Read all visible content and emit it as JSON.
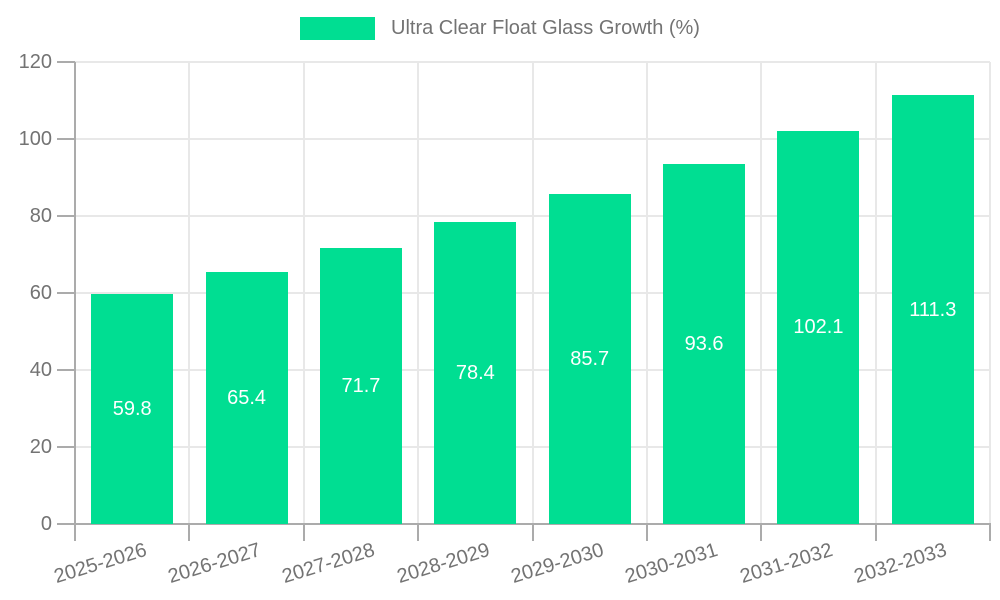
{
  "legend": {
    "label": "Ultra Clear Float Glass Growth (%)"
  },
  "chart_data": {
    "type": "bar",
    "title": "Ultra Clear Float Glass Growth (%)",
    "categories": [
      "2025-2026",
      "2026-2027",
      "2027-2028",
      "2028-2029",
      "2029-2030",
      "2030-2031",
      "2031-2032",
      "2032-2033"
    ],
    "values": [
      59.8,
      65.4,
      71.7,
      78.4,
      85.7,
      93.6,
      102.1,
      111.3
    ],
    "value_labels": [
      "59.8",
      "65.4",
      "71.7",
      "78.4",
      "85.7",
      "93.6",
      "102.1",
      "111.3"
    ],
    "xlabel": "",
    "ylabel": "",
    "ylim": [
      0,
      120
    ],
    "yticks": [
      0,
      20,
      40,
      60,
      80,
      100,
      120
    ],
    "grid": true,
    "legend_position": "top"
  },
  "colors": {
    "bar": "#00de92",
    "grid": "#e8e8e8",
    "axis": "#ababab",
    "tick_label": "#737373",
    "value_label": "#ffffff",
    "background": "#ffffff"
  }
}
